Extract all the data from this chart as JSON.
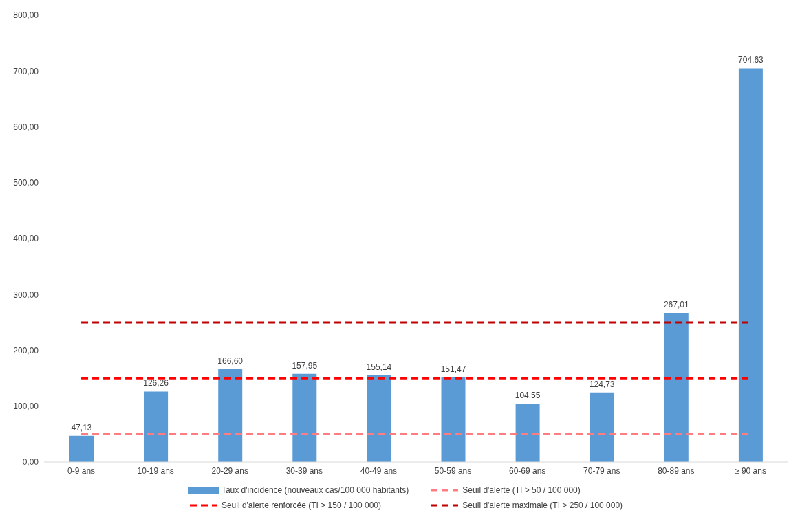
{
  "chart_data": {
    "type": "bar",
    "categories": [
      "0-9 ans",
      "10-19 ans",
      "20-29 ans",
      "30-39 ans",
      "40-49 ans",
      "50-59 ans",
      "60-69 ans",
      "70-79 ans",
      "80-89 ans",
      "≥ 90 ans"
    ],
    "series": [
      {
        "name": "Taux d'incidence (nouveaux cas/100 000 habitants)",
        "color": "#5b9bd5",
        "values": [
          47.13,
          126.26,
          166.6,
          157.95,
          155.14,
          151.47,
          104.55,
          124.73,
          267.01,
          704.63
        ],
        "value_labels": [
          "47,13",
          "126,26",
          "166,60",
          "157,95",
          "155,14",
          "151,47",
          "104,55",
          "124,73",
          "267,01",
          "704,63"
        ]
      },
      {
        "name": "Seuil d'alerte (TI > 50 / 100 000)",
        "type": "line",
        "line_style": "dashed",
        "color": "#ff7c80",
        "values": [
          50,
          50,
          50,
          50,
          50,
          50,
          50,
          50,
          50,
          50
        ]
      },
      {
        "name": "Seuil d'alerte renforcée (TI > 150 / 100 000)",
        "type": "line",
        "line_style": "dashed",
        "color": "#ff0000",
        "values": [
          150,
          150,
          150,
          150,
          150,
          150,
          150,
          150,
          150,
          150
        ]
      },
      {
        "name": "Seuil d'alerte maximale (TI > 250 / 100 000)",
        "type": "line",
        "line_style": "dashed",
        "color": "#c00000",
        "values": [
          250,
          250,
          250,
          250,
          250,
          250,
          250,
          250,
          250,
          250
        ]
      }
    ],
    "ylim": [
      0,
      800
    ],
    "yticks": [
      {
        "value": 0,
        "label": "0,00"
      },
      {
        "value": 100,
        "label": "100,00"
      },
      {
        "value": 200,
        "label": "200,00"
      },
      {
        "value": 300,
        "label": "300,00"
      },
      {
        "value": 400,
        "label": "400,00"
      },
      {
        "value": 500,
        "label": "500,00"
      },
      {
        "value": 600,
        "label": "600,00"
      },
      {
        "value": 700,
        "label": "700,00"
      },
      {
        "value": 800,
        "label": "800,00"
      }
    ],
    "grid": false,
    "legend": "bottom",
    "marker": "none"
  }
}
